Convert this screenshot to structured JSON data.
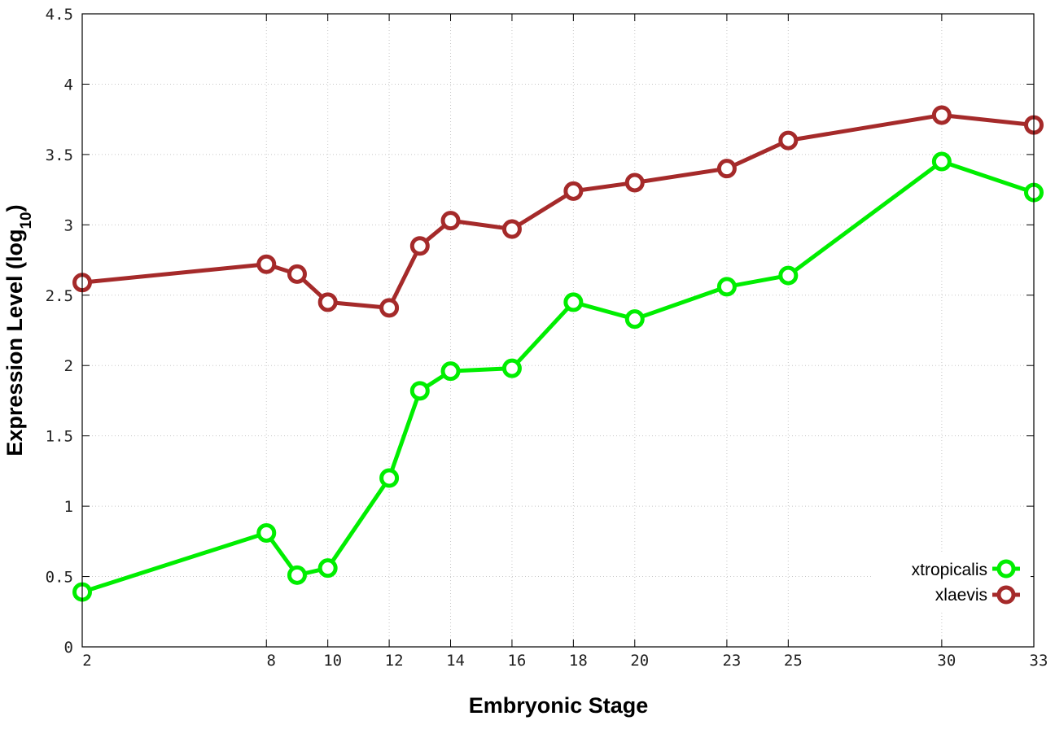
{
  "chart_data": {
    "type": "line",
    "xlabel": "Embryonic Stage",
    "ylabel_main": "Expression Level (log",
    "ylabel_sub": "10",
    "ylabel_end": ")",
    "x_categories": [
      "2",
      "8",
      "9",
      "10",
      "12",
      "13",
      "14",
      "16",
      "18",
      "20",
      "23",
      "25",
      "30",
      "33"
    ],
    "x_tick_labels": [
      "2",
      "8",
      "10",
      "12",
      "14",
      "16",
      "18",
      "20",
      "23",
      "25",
      "30",
      "33"
    ],
    "y_ticks": [
      "0",
      "0.5",
      "1",
      "1.5",
      "2",
      "2.5",
      "3",
      "3.5",
      "4",
      "4.5"
    ],
    "ylim": [
      0,
      4.5
    ],
    "grid": true,
    "legend_position": "bottom-right",
    "series": [
      {
        "name": "xtropicalis",
        "color": "#00ee00",
        "values": [
          0.39,
          0.81,
          0.51,
          0.56,
          1.2,
          1.82,
          1.96,
          1.98,
          2.45,
          2.33,
          2.56,
          2.64,
          3.45,
          3.23
        ]
      },
      {
        "name": "xlaevis",
        "color": "#a52a2a",
        "values": [
          2.59,
          2.72,
          2.65,
          2.45,
          2.41,
          2.85,
          3.03,
          2.97,
          3.24,
          3.3,
          3.4,
          3.6,
          3.78,
          3.71
        ]
      }
    ]
  }
}
